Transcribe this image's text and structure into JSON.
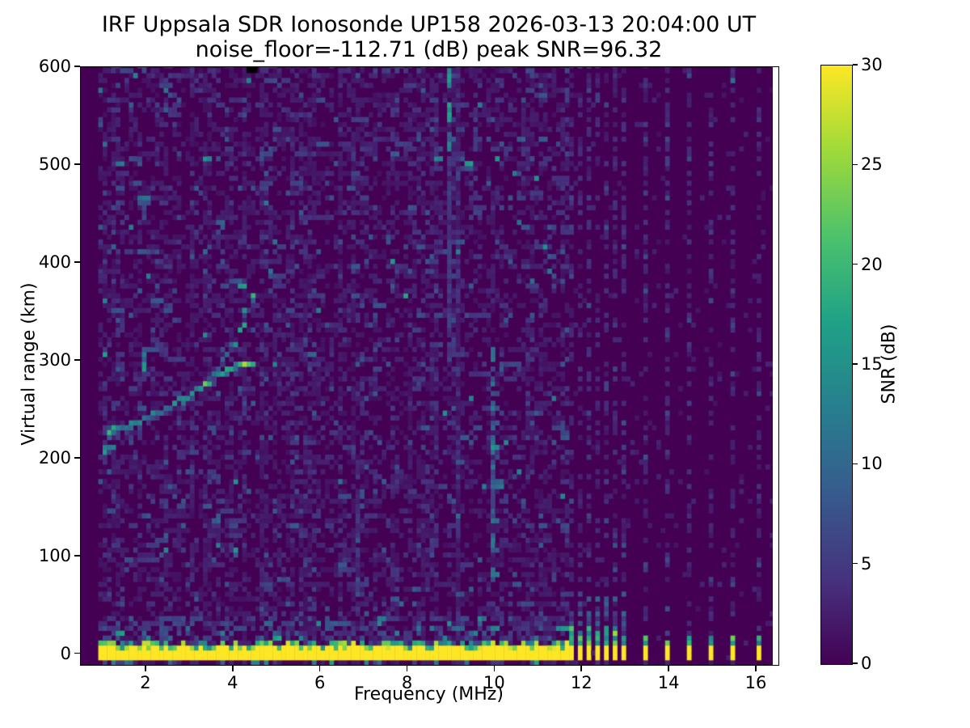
{
  "chart_data": {
    "type": "heatmap",
    "title": "IRF Uppsala SDR Ionosonde UP158 2026-03-13 20:04:00  UT",
    "subtitle": "noise_floor=-112.71 (dB) peak SNR=96.32",
    "xlabel": "Frequency (MHz)",
    "ylabel": "Virtual range (km)",
    "xlim": [
      0.5,
      16.5
    ],
    "ylim": [
      -11,
      600
    ],
    "xticks": [
      2,
      4,
      6,
      8,
      10,
      12,
      14,
      16
    ],
    "yticks": [
      0,
      100,
      200,
      300,
      400,
      500,
      600
    ],
    "noise_floor_db": -112.71,
    "peak_snr_db": 96.32,
    "colorbar": {
      "label": "SNR (dB)",
      "min": 0,
      "max": 30,
      "ticks": [
        0,
        5,
        10,
        15,
        20,
        25,
        30
      ],
      "colormap": "viridis"
    },
    "viridis_stops": [
      [
        0.0,
        "#440154"
      ],
      [
        0.14,
        "#46327e"
      ],
      [
        0.29,
        "#365c8d"
      ],
      [
        0.43,
        "#277f8e"
      ],
      [
        0.57,
        "#1fa187"
      ],
      [
        0.71,
        "#4ac16d"
      ],
      [
        0.86,
        "#a0da39"
      ],
      [
        1.0,
        "#fde725"
      ]
    ],
    "heatmap": {
      "seed": 158,
      "freq_bin_mhz": 0.1,
      "range_bin_km": 5,
      "data_freq_range": [
        0.5,
        16.37
      ],
      "quiet_below_freq": 0.95,
      "ground_band": {
        "freq_range": [
          0.95,
          11.65
        ],
        "km_range": [
          -7.5,
          9
        ],
        "snr": 30
      },
      "pulses_dense": [
        11.75,
        11.95,
        12.15,
        12.35,
        12.55,
        12.75,
        12.95
      ],
      "pulses_sparse": [
        13.45,
        13.95,
        14.45,
        14.95,
        15.45,
        16.05
      ],
      "rfi_stripes": [
        {
          "f": 8.95,
          "km": [
            515,
            600
          ],
          "snr": 15
        },
        {
          "f": 8.95,
          "km": [
            300,
            515
          ],
          "snr": 5
        },
        {
          "f": 9.95,
          "km": [
            75,
            312
          ],
          "snr": 10
        },
        {
          "f": 9.55,
          "km": [
            450,
            562
          ],
          "snr": 5
        },
        {
          "f": 6.85,
          "km": [
            40,
            200
          ],
          "snr": 4.5
        },
        {
          "f": 1.95,
          "km": [
            290,
            312
          ],
          "snr": 14
        },
        {
          "f": 2.45,
          "km": [
            105,
            125
          ],
          "snr": 12
        }
      ],
      "trace_main": [
        [
          1.15,
          227,
          16
        ],
        [
          1.35,
          230,
          13
        ],
        [
          1.55,
          233,
          12
        ],
        [
          1.75,
          236,
          13
        ],
        [
          1.95,
          240,
          12
        ],
        [
          2.15,
          244,
          13
        ],
        [
          2.35,
          248,
          14
        ],
        [
          2.55,
          253,
          13
        ],
        [
          2.75,
          258,
          12
        ],
        [
          2.95,
          263,
          14
        ],
        [
          3.15,
          269,
          16
        ],
        [
          3.35,
          275,
          20
        ],
        [
          3.55,
          281,
          18
        ],
        [
          3.75,
          287,
          14
        ],
        [
          3.95,
          292,
          14
        ],
        [
          4.15,
          295,
          17
        ],
        [
          4.35,
          297,
          22
        ],
        [
          4.5,
          297,
          20
        ]
      ],
      "trace_upper": [
        [
          3.45,
          278,
          9
        ],
        [
          3.65,
          290,
          11
        ],
        [
          3.85,
          304,
          13
        ],
        [
          4.05,
          320,
          13
        ],
        [
          4.2,
          338,
          14
        ],
        [
          4.3,
          352,
          17
        ],
        [
          4.4,
          365,
          22
        ],
        [
          4.47,
          378,
          17
        ]
      ],
      "bright_spots": [
        [
          1.75,
          593,
          13
        ],
        [
          4.35,
          588,
          13
        ],
        [
          15.45,
          586,
          11
        ],
        [
          9.62,
          560,
          12
        ]
      ],
      "top_gap": {
        "freq_range": [
          4.3,
          4.55
        ],
        "km_range": [
          594,
          600
        ]
      }
    }
  }
}
